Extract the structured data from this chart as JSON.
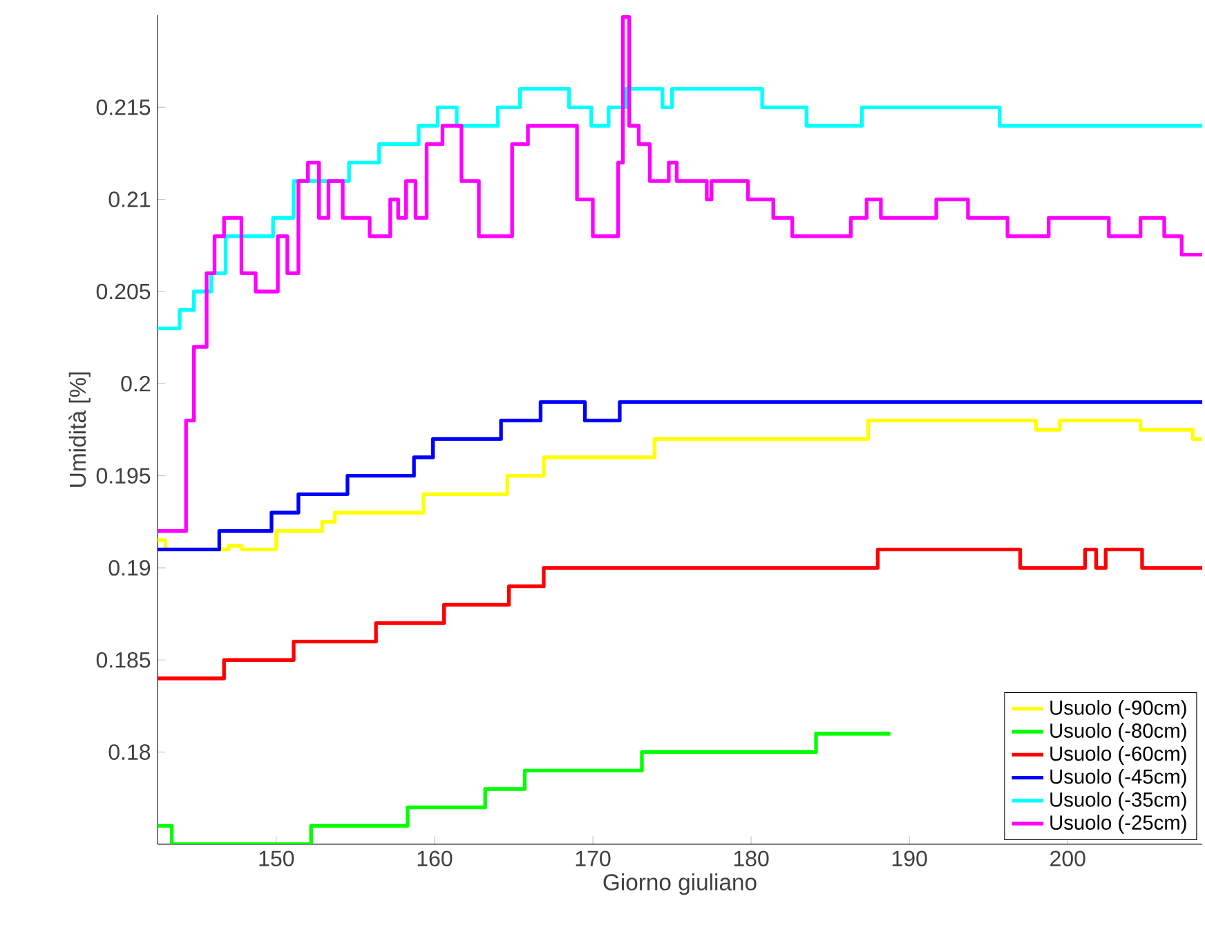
{
  "chart_data": {
    "type": "step",
    "xlabel": "Giorno giuliano",
    "ylabel": "Umidità [%]",
    "xlim": [
      142.5,
      208.5
    ],
    "ylim": [
      0.175,
      0.22
    ],
    "xticks": [
      150,
      160,
      170,
      180,
      190,
      200
    ],
    "yticks": [
      0.18,
      0.185,
      0.19,
      0.195,
      0.2,
      0.205,
      0.21,
      0.215
    ],
    "legend": "bottom right",
    "grid": false,
    "marker": "none",
    "line_style": "solid",
    "series": [
      {
        "name": "Usuolo (-90cm)",
        "color": "#ffff00",
        "x": [
          142.5,
          143,
          147,
          147.8,
          150,
          152.9,
          153.7,
          159.3,
          164.6,
          166.9,
          173.9,
          187.4,
          198,
          199.5,
          204.6,
          207.9,
          208.5
        ],
        "values": [
          0.1915,
          0.191,
          0.1912,
          0.191,
          0.192,
          0.1925,
          0.193,
          0.194,
          0.195,
          0.196,
          0.197,
          0.198,
          0.1975,
          0.198,
          0.1975,
          0.197,
          0.197
        ]
      },
      {
        "name": "Usuolo (-80cm)",
        "color": "#00ff00",
        "x": [
          142.5,
          143.4,
          152.2,
          158.3,
          163.2,
          165.7,
          173.1,
          184.1,
          188.8
        ],
        "values": [
          0.176,
          0.175,
          0.176,
          0.177,
          0.178,
          0.179,
          0.18,
          0.181,
          0.181
        ]
      },
      {
        "name": "Usuolo (-60cm)",
        "color": "#ff0000",
        "x": [
          142.5,
          146.7,
          151.1,
          156.3,
          160.6,
          164.7,
          166.9,
          188,
          197,
          201.1,
          201.8,
          202.4,
          204.7,
          208.5
        ],
        "values": [
          0.184,
          0.185,
          0.186,
          0.187,
          0.188,
          0.189,
          0.19,
          0.191,
          0.19,
          0.191,
          0.19,
          0.191,
          0.19,
          0.19
        ]
      },
      {
        "name": "Usuolo (-45cm)",
        "color": "#0000ff",
        "x": [
          142.5,
          146.4,
          149.7,
          151.4,
          154.5,
          158.7,
          159.9,
          164.2,
          166.7,
          169.5,
          171.7,
          208.5
        ],
        "values": [
          0.191,
          0.192,
          0.193,
          0.194,
          0.195,
          0.196,
          0.197,
          0.198,
          0.199,
          0.198,
          0.199,
          0.199
        ]
      },
      {
        "name": "Usuolo (-35cm)",
        "color": "#00ffff",
        "x": [
          142.5,
          143.9,
          144.8,
          145.9,
          146.8,
          149.8,
          151.1,
          154.6,
          156.5,
          159,
          160.2,
          161.4,
          164,
          165.4,
          168.5,
          169.9,
          171,
          172.1,
          174.4,
          175,
          180.7,
          183.5,
          187,
          195.7,
          208.5
        ],
        "values": [
          0.203,
          0.204,
          0.205,
          0.206,
          0.208,
          0.209,
          0.211,
          0.212,
          0.213,
          0.214,
          0.215,
          0.214,
          0.215,
          0.216,
          0.215,
          0.214,
          0.215,
          0.216,
          0.215,
          0.216,
          0.215,
          0.214,
          0.215,
          0.214,
          0.214
        ]
      },
      {
        "name": "Usuolo (-25cm)",
        "color": "#ff00ff",
        "x": [
          142.5,
          144.3,
          144.8,
          145.6,
          146.1,
          146.7,
          147.8,
          148.7,
          150.1,
          150.7,
          151.4,
          152,
          152.7,
          153.3,
          154.2,
          155.9,
          157.2,
          157.7,
          158.2,
          158.8,
          159.5,
          160.5,
          161.7,
          162.8,
          164.9,
          165.9,
          168,
          169,
          170,
          171.6,
          171.9,
          172.3,
          172.9,
          173.6,
          174.8,
          175.3,
          177.2,
          177.5,
          179.8,
          181.4,
          182.6,
          186.3,
          187.3,
          188.2,
          191.4,
          191.7,
          193.7,
          196.2,
          198.8,
          202.6,
          204.6,
          206.1,
          207.2,
          208.5
        ],
        "values": [
          0.192,
          0.198,
          0.202,
          0.206,
          0.208,
          0.209,
          0.206,
          0.205,
          0.208,
          0.206,
          0.211,
          0.212,
          0.209,
          0.211,
          0.209,
          0.208,
          0.21,
          0.209,
          0.211,
          0.209,
          0.213,
          0.214,
          0.211,
          0.208,
          0.213,
          0.214,
          0.214,
          0.21,
          0.208,
          0.212,
          0.2199,
          0.214,
          0.213,
          0.211,
          0.212,
          0.211,
          0.21,
          0.211,
          0.21,
          0.209,
          0.208,
          0.209,
          0.21,
          0.209,
          0.209,
          0.21,
          0.209,
          0.208,
          0.209,
          0.208,
          0.209,
          0.208,
          0.207,
          0.207
        ]
      }
    ]
  }
}
